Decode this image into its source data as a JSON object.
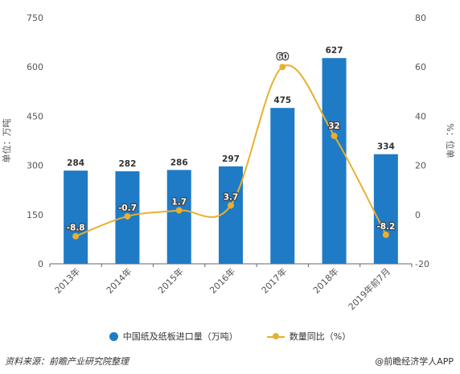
{
  "chart_data": {
    "type": "bar",
    "categories": [
      "2013年",
      "2014年",
      "2015年",
      "2016年",
      "2017年",
      "2018年",
      "2019年前7月"
    ],
    "series": [
      {
        "name": "中国纸及纸板进口量（万吨）",
        "type": "bar",
        "axis": "left",
        "values": [
          284,
          282,
          286,
          297,
          475,
          627,
          334
        ],
        "color": "#1f7bc6"
      },
      {
        "name": "数量同比（%）",
        "type": "line",
        "axis": "right",
        "values": [
          -8.8,
          -0.7,
          1.7,
          3.7,
          60,
          32,
          -8.2
        ],
        "color": "#e8b02e"
      }
    ],
    "ylabel": "单位：万吨",
    "y2label": "%：位单",
    "ylim": [
      0,
      750
    ],
    "yticks": [
      0,
      150,
      300,
      450,
      600,
      750
    ],
    "y2lim": [
      -20,
      80
    ],
    "y2ticks": [
      -20,
      0,
      20,
      40,
      60,
      80
    ],
    "bar_labels": [
      "284",
      "282",
      "286",
      "297",
      "475",
      "627",
      "334"
    ],
    "line_labels": [
      "-8.8",
      "-0.7",
      "1.7",
      "3.7",
      "60",
      "32",
      "-8.2"
    ],
    "grid": false,
    "legend_position": "bottom"
  },
  "footer": {
    "source": "资料来源：前瞻产业研究院整理",
    "brand": "@前瞻经济学人APP"
  }
}
